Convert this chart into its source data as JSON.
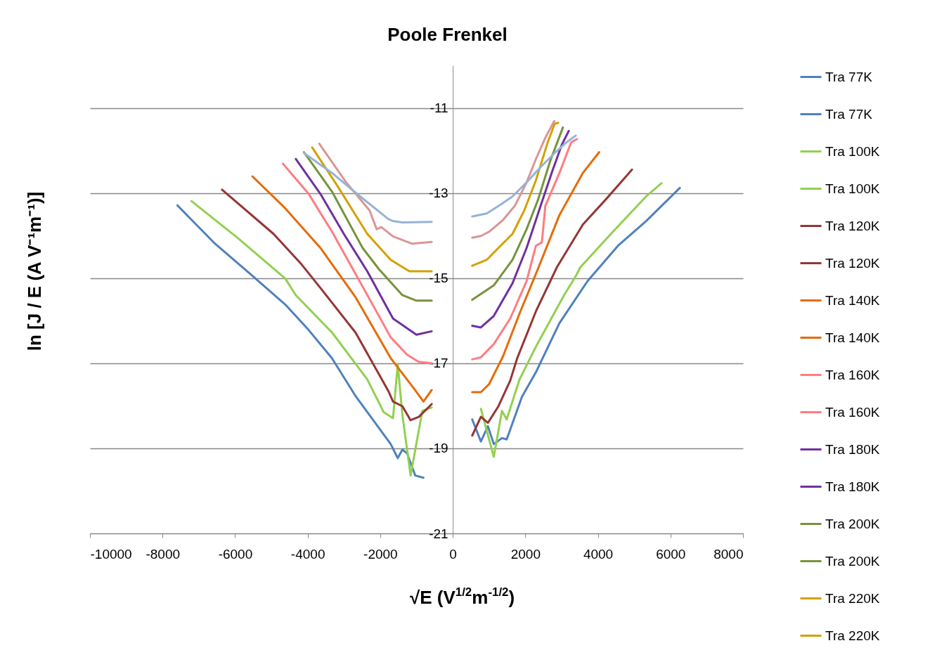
{
  "chart_data": {
    "type": "line",
    "title": "Poole Frenkel",
    "xlabel": "√E (V$^{1/2}$m$^{-1/2}$)",
    "ylabel": "ln [J / E (A V⁻¹m⁻¹)]",
    "xlim": [
      -10000,
      8000
    ],
    "xticks": [
      -10000,
      -8000,
      -6000,
      -4000,
      -2000,
      0,
      2000,
      4000,
      6000,
      8000
    ],
    "ylim": [
      -21,
      -10
    ],
    "yticks": [
      -21,
      -19,
      -17,
      -15,
      -13,
      -11
    ],
    "grid": "y",
    "legend": "right",
    "series": [
      {
        "name": "Tra 77K",
        "color": "#4f81bd",
        "x": [
          -7590,
          -6555,
          -5586,
          -4617,
          -3972,
          -3333,
          -2680,
          -1711,
          -1517,
          -1389,
          -1259,
          -1033,
          -808
        ],
        "values": [
          -13.29,
          -14.19,
          -14.9,
          -15.62,
          -16.22,
          -16.88,
          -17.77,
          -18.9,
          -19.23,
          -19.03,
          -19.12,
          -19.64,
          -19.69
        ]
      },
      {
        "name": "Tra 77K",
        "color": "#4f81bd",
        "x": [
          536,
          775,
          969,
          1130,
          1356,
          1486,
          1905,
          2292,
          2939,
          3714,
          4553,
          5329,
          6258
        ],
        "values": [
          -18.32,
          -18.84,
          -18.48,
          -18.9,
          -18.76,
          -18.79,
          -17.79,
          -17.21,
          -16.06,
          -15.07,
          -14.24,
          -13.66,
          -12.88
        ]
      },
      {
        "name": "Tra 100K",
        "color": "#92d050",
        "x": [
          -7202,
          -5910,
          -4617,
          -4327,
          -3326,
          -2357,
          -1905,
          -1647,
          -1517,
          -1389,
          -1163,
          -839,
          -581
        ],
        "values": [
          -13.19,
          -14.07,
          -15.01,
          -15.4,
          -16.28,
          -17.38,
          -18.15,
          -18.29,
          -17.02,
          -18.21,
          -19.64,
          -18.12,
          -18.04
        ]
      },
      {
        "name": "Tra 100K",
        "color": "#92d050",
        "x": [
          775,
          1130,
          1356,
          1486,
          1841,
          2292,
          3068,
          3391,
          3521,
          4360,
          5329,
          5755
        ],
        "values": [
          -18.07,
          -19.2,
          -18.12,
          -18.32,
          -17.38,
          -16.61,
          -15.4,
          -14.95,
          -14.74,
          -13.96,
          -13.08,
          -12.77
        ]
      },
      {
        "name": "Tra 120K",
        "color": "#943634",
        "x": [
          -6361,
          -4941,
          -4166,
          -3649,
          -2680,
          -1777,
          -1647,
          -1389,
          -1163,
          -936,
          -581
        ],
        "values": [
          -12.92,
          -13.96,
          -14.68,
          -15.23,
          -16.28,
          -17.65,
          -17.9,
          -18.01,
          -18.34,
          -18.26,
          -17.96
        ]
      },
      {
        "name": "Tra 120K",
        "color": "#943634",
        "x": [
          536,
          775,
          969,
          1259,
          1583,
          1777,
          2292,
          2873,
          3585,
          4230,
          4941
        ],
        "values": [
          -18.7,
          -18.26,
          -18.4,
          -18.01,
          -17.41,
          -16.88,
          -15.78,
          -14.74,
          -13.74,
          -13.14,
          -12.45
        ]
      },
      {
        "name": "Tra 140K",
        "color": "#e46c0a",
        "x": [
          -5522,
          -4617,
          -3649,
          -2680,
          -1711,
          -1066,
          -808,
          -581
        ],
        "values": [
          -12.61,
          -13.36,
          -14.29,
          -15.45,
          -16.88,
          -17.6,
          -17.9,
          -17.63
        ]
      },
      {
        "name": "Tra 140K",
        "color": "#e46c0a",
        "x": [
          536,
          775,
          1002,
          1389,
          1841,
          2292,
          2939,
          3585,
          4036
        ],
        "values": [
          -17.68,
          -17.68,
          -17.49,
          -16.83,
          -15.83,
          -14.9,
          -13.52,
          -12.53,
          -12.04
        ]
      },
      {
        "name": "Tra 160K",
        "color": "#ff7c80",
        "x": [
          -4682,
          -3972,
          -3327,
          -2680,
          -1711,
          -1259,
          -936,
          -581
        ],
        "values": [
          -12.31,
          -13.02,
          -13.91,
          -14.9,
          -16.39,
          -16.8,
          -16.97,
          -17.0
        ]
      },
      {
        "name": "Tra 160K",
        "color": "#ff7c80",
        "x": [
          536,
          775,
          1130,
          1583,
          2035,
          2292,
          2455,
          2552,
          2939,
          3262,
          3424
        ],
        "values": [
          -16.91,
          -16.86,
          -16.55,
          -15.95,
          -15.07,
          -14.24,
          -14.16,
          -13.3,
          -12.53,
          -11.81,
          -11.73
        ]
      },
      {
        "name": "Tra 180K",
        "color": "#7030a0",
        "x": [
          -4327,
          -3649,
          -3003,
          -2357,
          -1647,
          -1002,
          -581
        ],
        "values": [
          -12.2,
          -13.02,
          -13.96,
          -14.84,
          -15.95,
          -16.33,
          -16.25
        ]
      },
      {
        "name": "Tra 180K",
        "color": "#7030a0",
        "x": [
          536,
          775,
          1130,
          1647,
          2035,
          2422,
          2745,
          3003,
          3197
        ],
        "values": [
          -16.12,
          -16.16,
          -15.89,
          -15.12,
          -14.29,
          -13.3,
          -12.48,
          -11.87,
          -11.54
        ]
      },
      {
        "name": "Tra 200K",
        "color": "#77933c",
        "x": [
          -4101,
          -3327,
          -2486,
          -2035,
          -1389,
          -1002,
          -581
        ],
        "values": [
          -12.04,
          -12.97,
          -14.29,
          -14.79,
          -15.4,
          -15.53,
          -15.53
        ]
      },
      {
        "name": "Tra 200K",
        "color": "#77933c",
        "x": [
          536,
          1130,
          1647,
          2035,
          2358,
          2680,
          3036
        ],
        "values": [
          -15.51,
          -15.17,
          -14.57,
          -13.85,
          -13.14,
          -12.26,
          -11.46
        ]
      },
      {
        "name": "Tra 220K",
        "color": "#d4a000",
        "x": [
          -3875,
          -3197,
          -2357,
          -1711,
          -1195,
          -581
        ],
        "values": [
          -11.93,
          -12.81,
          -13.96,
          -14.57,
          -14.84,
          -14.84
        ]
      },
      {
        "name": "Tra 220K",
        "color": "#d4a000",
        "x": [
          536,
          936,
          1259,
          1647,
          1970,
          2292,
          2616,
          2810,
          2906
        ],
        "values": [
          -14.71,
          -14.57,
          -14.29,
          -13.96,
          -13.41,
          -12.7,
          -11.81,
          -11.37,
          -11.35
        ]
      },
      {
        "color": "#d99694",
        "x": [
          -3681,
          -2939,
          -2292,
          -2098,
          -1970,
          -1647,
          -1130,
          -581
        ],
        "values": [
          -11.84,
          -12.75,
          -13.41,
          -13.85,
          -13.8,
          -14.02,
          -14.19,
          -14.15
        ]
      },
      {
        "color": "#d99694",
        "x": [
          536,
          775,
          1002,
          1389,
          1711,
          2035,
          2292,
          2552,
          2797
        ],
        "values": [
          -14.05,
          -14.01,
          -13.91,
          -13.63,
          -13.3,
          -12.75,
          -12.2,
          -11.7,
          -11.31
        ]
      },
      {
        "color": "#95b3d7",
        "x": [
          -4101,
          -3327,
          -2552,
          -1777,
          -1647,
          -1389,
          -581
        ],
        "values": [
          -12.06,
          -12.53,
          -13.08,
          -13.61,
          -13.66,
          -13.69,
          -13.68
        ]
      },
      {
        "color": "#95b3d7",
        "x": [
          536,
          936,
          1323,
          1647,
          2035,
          2422,
          2810,
          3133,
          3391
        ],
        "values": [
          -13.55,
          -13.48,
          -13.27,
          -13.08,
          -12.75,
          -12.39,
          -12.06,
          -11.81,
          -11.65
        ]
      }
    ]
  }
}
